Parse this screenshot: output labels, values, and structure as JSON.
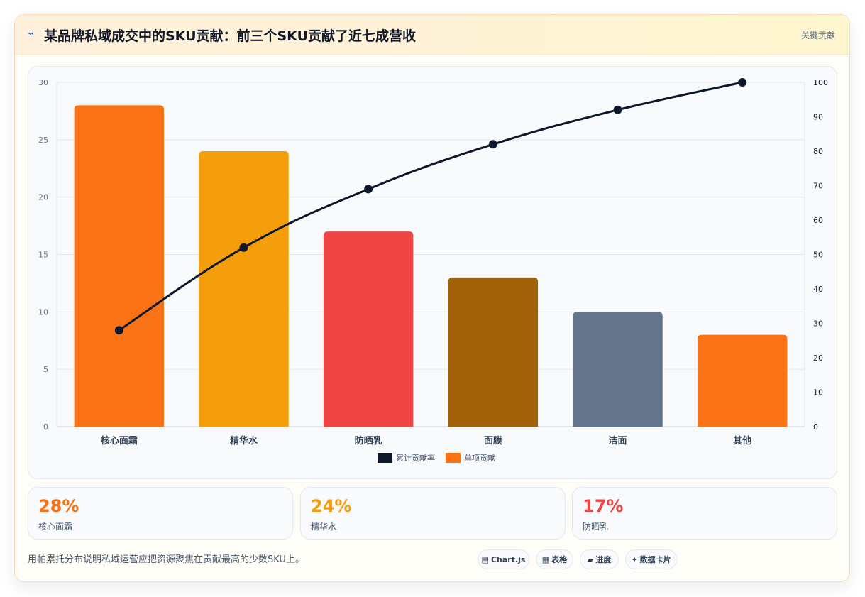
{
  "header": {
    "icon": "lightning-icon",
    "icon_glyph": "⌁",
    "title": "某品牌私域成交中的SKU贡献：前三个SKU贡献了近七成营收",
    "tag": "关键贡献"
  },
  "chart_data": {
    "type": "bar",
    "categories": [
      "核心面霜",
      "精华水",
      "防晒乳",
      "面膜",
      "洁面",
      "其他"
    ],
    "series": [
      {
        "name": "单项贡献",
        "type": "bar",
        "axis": "left",
        "values": [
          28,
          24,
          17,
          13,
          10,
          8
        ],
        "colors": [
          "#f97316",
          "#f59e0b",
          "#ef4444",
          "#a16207",
          "#64748b",
          "#f97316"
        ]
      },
      {
        "name": "累计贡献率",
        "type": "line",
        "axis": "right",
        "values": [
          28,
          52,
          69,
          82,
          92,
          100
        ],
        "color": "#0f172a"
      }
    ],
    "y_left": {
      "min": 0,
      "max": 30,
      "ticks": [
        0,
        5,
        10,
        15,
        20,
        25,
        30
      ]
    },
    "y_right": {
      "min": 0,
      "max": 100,
      "ticks": [
        0,
        10,
        20,
        30,
        40,
        50,
        60,
        70,
        80,
        90,
        100
      ]
    },
    "legend": {
      "placement": "bottom",
      "items": [
        {
          "label": "累计贡献率",
          "color": "#0f172a"
        },
        {
          "label": "单项贡献",
          "color": "#f97316"
        }
      ]
    },
    "grid": true
  },
  "stats": [
    {
      "value": "28%",
      "label": "核心面霜",
      "color": "#f97316"
    },
    {
      "value": "24%",
      "label": "精华水",
      "color": "#f59e0b"
    },
    {
      "value": "17%",
      "label": "防晒乳",
      "color": "#ef4444"
    }
  ],
  "footer": {
    "note": "用帕累托分布说明私域运营应把资源聚焦在贡献最高的少数SKU上。",
    "chips": [
      {
        "icon": "chart-icon",
        "glyph": "▤",
        "label": "Chart.js"
      },
      {
        "icon": "table-icon",
        "glyph": "▦",
        "label": "表格"
      },
      {
        "icon": "progress-icon",
        "glyph": "▰",
        "label": "进度"
      },
      {
        "icon": "sparkle-icon",
        "glyph": "✦",
        "label": "数据卡片"
      }
    ]
  }
}
